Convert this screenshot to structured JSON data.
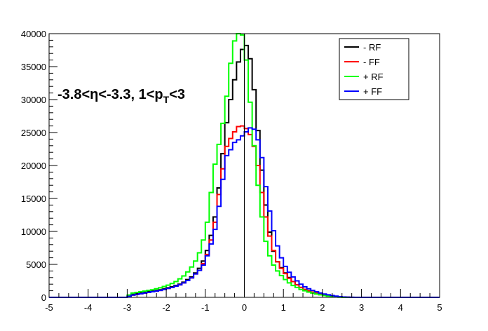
{
  "chart_data": {
    "type": "histogram",
    "xlim": [
      -5,
      5
    ],
    "ylim": [
      0,
      40000
    ],
    "bin_width": 0.1,
    "x_ticks": [
      -5,
      -4,
      -3,
      -2,
      -1,
      0,
      1,
      2,
      3,
      4,
      5
    ],
    "y_ticks": [
      0,
      5000,
      10000,
      15000,
      20000,
      25000,
      30000,
      35000,
      40000
    ],
    "grid": false,
    "legend_position": "top-right",
    "annotation": {
      "main": "-3.8<η<-3.3, 1<p",
      "subscript": "T",
      "tail": "<3"
    },
    "series": [
      {
        "name": "- RF",
        "color": "#000000",
        "x_start": -3.0,
        "values": [
          200,
          450,
          550,
          650,
          750,
          850,
          950,
          1050,
          1150,
          1300,
          1450,
          1600,
          1800,
          2000,
          2300,
          2700,
          3100,
          3700,
          4400,
          5500,
          7100,
          9400,
          12200,
          16600,
          21800,
          26500,
          30000,
          33000,
          35700,
          37600,
          38200,
          36200,
          31500,
          25300,
          19300,
          14000,
          9900,
          7000,
          5400,
          4500,
          3700,
          3000,
          2400,
          1900,
          1500,
          1200,
          1000,
          800,
          650,
          500,
          380,
          280,
          190,
          110,
          60,
          30,
          15,
          5,
          0,
          0,
          0
        ]
      },
      {
        "name": "- FF",
        "color": "#ff0000",
        "x_start": -3.0,
        "values": [
          150,
          350,
          450,
          550,
          650,
          750,
          850,
          950,
          1050,
          1200,
          1350,
          1500,
          1700,
          1900,
          2200,
          2550,
          2950,
          3550,
          4100,
          5100,
          6500,
          8700,
          11400,
          15600,
          19500,
          22900,
          24100,
          25100,
          25900,
          26000,
          25600,
          24700,
          22900,
          20000,
          15900,
          12200,
          9300,
          7100,
          5400,
          4400,
          3600,
          2900,
          2400,
          1900,
          1500,
          1200,
          1000,
          800,
          650,
          500,
          380,
          280,
          190,
          110,
          60,
          30,
          15,
          5,
          0,
          0,
          0
        ]
      },
      {
        "name": "+ RF",
        "color": "#00ff00",
        "x_start": -3.0,
        "values": [
          350,
          650,
          750,
          850,
          950,
          1050,
          1150,
          1300,
          1450,
          1650,
          1850,
          2100,
          2400,
          2800,
          3250,
          3850,
          4600,
          5500,
          6750,
          8700,
          11400,
          15900,
          20200,
          23200,
          26400,
          30500,
          35500,
          38900,
          40000,
          39800,
          36000,
          29600,
          23000,
          17000,
          12200,
          8500,
          6300,
          4900,
          4000,
          3300,
          2700,
          2200,
          1800,
          1500,
          1200,
          1000,
          800,
          650,
          500,
          380,
          280,
          190,
          110,
          60,
          30,
          15,
          5,
          0,
          0,
          0,
          0
        ]
      },
      {
        "name": "+ FF",
        "color": "#0000ff",
        "x_start": -3.0,
        "values": [
          150,
          350,
          450,
          550,
          650,
          750,
          850,
          950,
          1050,
          1200,
          1350,
          1500,
          1700,
          1900,
          2200,
          2550,
          2950,
          3550,
          4100,
          4900,
          6300,
          8100,
          10300,
          13800,
          17900,
          21500,
          22400,
          23500,
          23900,
          24500,
          25100,
          25700,
          25500,
          23900,
          21200,
          16800,
          13100,
          10100,
          7800,
          6000,
          4700,
          3800,
          3100,
          2500,
          2000,
          1600,
          1300,
          1050,
          850,
          650,
          500,
          380,
          280,
          190,
          110,
          60,
          30,
          15,
          5,
          0,
          0
        ]
      }
    ]
  }
}
